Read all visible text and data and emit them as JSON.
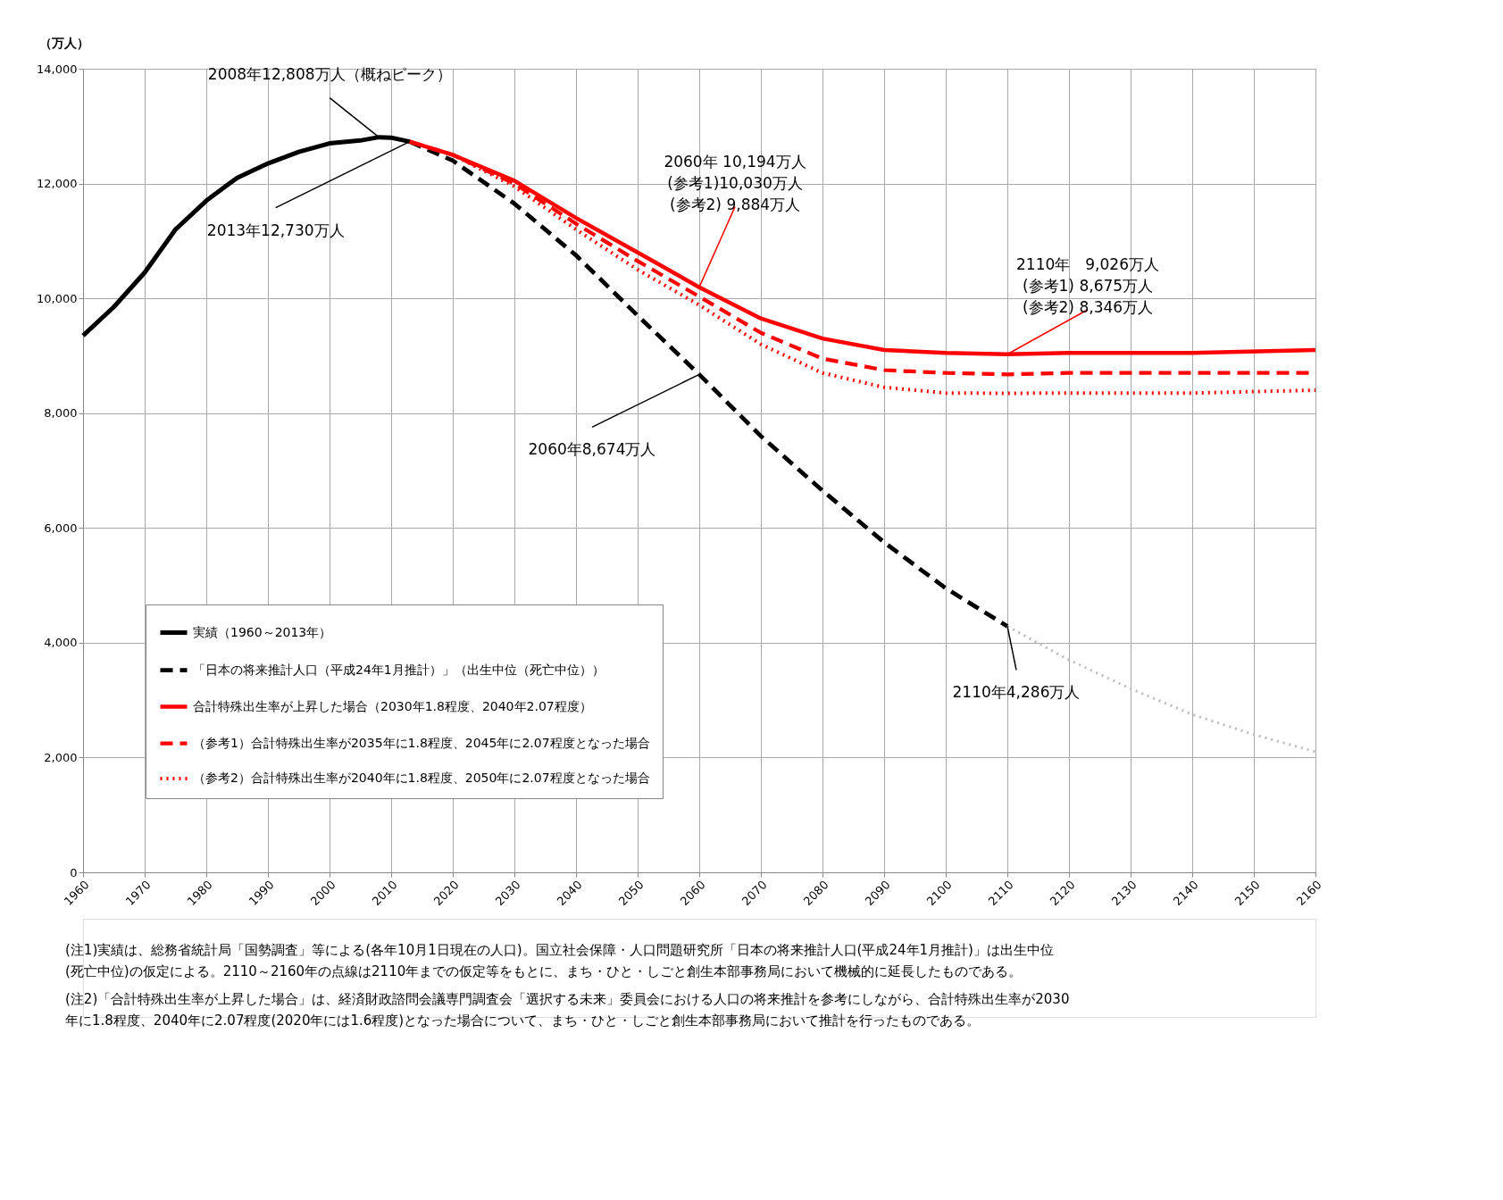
{
  "chart_data": {
    "type": "line",
    "ylabel": "（万人）",
    "xlim": [
      1960,
      2160
    ],
    "xticks": [
      1960,
      1970,
      1980,
      1990,
      2000,
      2010,
      2020,
      2030,
      2040,
      2050,
      2060,
      2070,
      2080,
      2090,
      2100,
      2110,
      2120,
      2130,
      2140,
      2150,
      2160
    ],
    "ylim": [
      0,
      14000
    ],
    "yticks": [
      0,
      {
        "value": 2000,
        "label": "2,000"
      },
      {
        "value": 4000,
        "label": "4,000"
      },
      {
        "value": 6000,
        "label": "6,000"
      },
      {
        "value": 8000,
        "label": "8,000"
      },
      {
        "value": 10000,
        "label": "10,000"
      },
      {
        "value": 12000,
        "label": "12,000"
      },
      {
        "value": 14000,
        "label": "14,000"
      }
    ],
    "grid": true,
    "legend": "bottom left",
    "series": [
      {
        "name": "実績（1960～2013年）",
        "color": "#000000",
        "line_style": "solid",
        "x": [
          1960,
          1965,
          1970,
          1975,
          1980,
          1985,
          1990,
          1995,
          2000,
          2005,
          2008,
          2010,
          2013
        ],
        "values": [
          9350,
          9850,
          10450,
          11200,
          11700,
          12100,
          12350,
          12550,
          12700,
          12750,
          12808,
          12800,
          12730
        ]
      },
      {
        "name": "「日本の将来推計人口（平成24年1月推計）」（出生中位（死亡中位））",
        "color": "#000000",
        "line_style": "dashed",
        "x": [
          2013,
          2020,
          2030,
          2040,
          2050,
          2060,
          2070,
          2080,
          2090,
          2100,
          2110
        ],
        "values": [
          12730,
          12400,
          11650,
          10750,
          9700,
          8674,
          7600,
          6650,
          5750,
          4950,
          4286
        ]
      },
      {
        "name": "合計特殊出生率が上昇した場合（2030年1.8程度、2040年2.07程度）",
        "color": "#ff0000",
        "line_style": "solid",
        "x": [
          2013,
          2020,
          2030,
          2040,
          2050,
          2060,
          2070,
          2080,
          2090,
          2100,
          2110,
          2120,
          2140,
          2160
        ],
        "values": [
          12730,
          12500,
          12050,
          11400,
          10800,
          10194,
          9650,
          9300,
          9100,
          9050,
          9026,
          9050,
          9050,
          9100
        ]
      },
      {
        "name": "（参考1）合計特殊出生率が2035年に1.8程度、2045年に2.07程度となった場合",
        "color": "#ff0000",
        "line_style": "dashed",
        "x": [
          2013,
          2020,
          2030,
          2040,
          2050,
          2060,
          2070,
          2080,
          2090,
          2100,
          2110,
          2120,
          2140,
          2160
        ],
        "values": [
          12730,
          12500,
          12000,
          11300,
          10650,
          10030,
          9400,
          8950,
          8750,
          8700,
          8675,
          8700,
          8700,
          8700
        ]
      },
      {
        "name": "（参考2）合計特殊出生率が2040年に1.8程度、2050年に2.07程度となった場合",
        "color": "#ff0000",
        "line_style": "dotted",
        "x": [
          2013,
          2020,
          2030,
          2040,
          2050,
          2060,
          2070,
          2080,
          2090,
          2100,
          2110,
          2120,
          2140,
          2160
        ],
        "values": [
          12730,
          12500,
          11950,
          11200,
          10500,
          9884,
          9200,
          8700,
          8450,
          8350,
          8346,
          8350,
          8350,
          8400
        ]
      },
      {
        "color": "#bbbbbb",
        "line_style": "dotted",
        "x": [
          2110,
          2120,
          2130,
          2140,
          2150,
          2160
        ],
        "values": [
          4286,
          3700,
          3200,
          2750,
          2400,
          2100
        ]
      }
    ],
    "annotations": [
      {
        "text": "2008年12,808万人（概ねピーク）",
        "x": 2008,
        "y": 12808
      },
      {
        "text": "2013年12,730万人",
        "x": 2013,
        "y": 12730
      },
      {
        "text": "2060年8,674万人",
        "x": 2060,
        "y": 8674
      },
      {
        "text": "2060年 10,194万人\n(参考1)10,030万人\n(参考2) 9,884万人",
        "x": 2060,
        "y": 10194
      },
      {
        "text": "2110年　9,026万人\n(参考1) 8,675万人\n(参考2) 8,346万人",
        "x": 2110,
        "y": 9026
      },
      {
        "text": "2110年4,286万人",
        "x": 2110,
        "y": 4286
      },
      "(注1)実績は、総務省統計局「国勢調査」等による(各年10月1日現在の人口)。国立社会保障・人口問題研究所「日本の将来推計人口(平成24年1月推計)」は出生中位\n　　(死亡中位)の仮定による。2110～2160年の点線は2110年までの仮定等をもとに、まち・ひと・しごと創生本部事務局において機械的に延長したものである。",
      "(注2)「合計特殊出生率が上昇した場合」は、経済財政諮問会議専門調査会「選択する未来」委員会における人口の将来推計を参考にしながら、合計特殊出生率が2030\n　　年に1.8程度、2040年に2.07程度(2020年には1.6程度)となった場合について、まち・ひと・しごと創生本部事務局において推計を行ったものである。"
    ]
  }
}
